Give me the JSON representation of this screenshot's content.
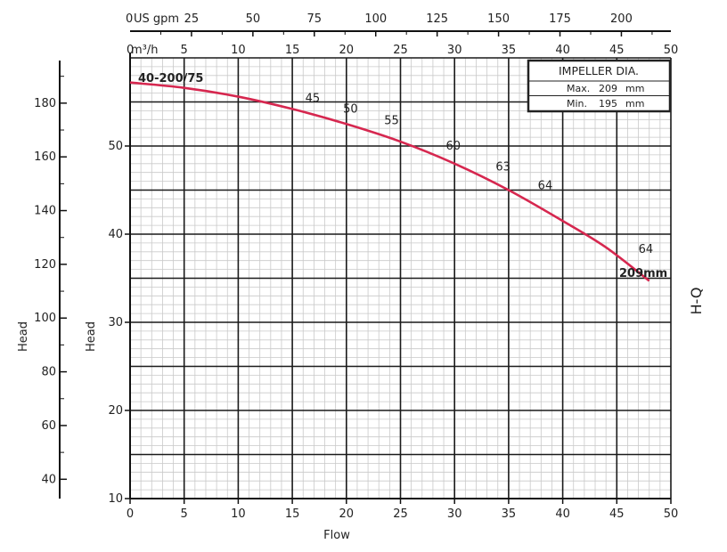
{
  "chart_data": {
    "type": "line",
    "title": "",
    "model_label": "40-200/75",
    "side_label": "H-Q",
    "xlabel": "Flow",
    "x_units_label": "m³/h",
    "x_top_units_label": "US gpm",
    "x_top_zero": "0",
    "ylabel_left": "Head",
    "ylabel_inner": "Head",
    "xlim": [
      0,
      50
    ],
    "ylim": [
      10,
      60
    ],
    "x_ticks": [
      "0",
      "5",
      "10",
      "15",
      "20",
      "25",
      "30",
      "35",
      "40",
      "45",
      "50"
    ],
    "x_top_ticks": [
      "25",
      "50",
      "75",
      "100",
      "125",
      "150",
      "175",
      "200"
    ],
    "y_inner_ticks": [
      "10",
      "20",
      "30",
      "40",
      "50"
    ],
    "y_outer_ticks": [
      "40",
      "60",
      "80",
      "100",
      "120",
      "140",
      "160",
      "180"
    ],
    "grid": true,
    "series": [
      {
        "name": "209mm",
        "color": "#d6274f",
        "x": [
          0,
          5,
          10,
          15,
          20,
          25,
          30,
          35,
          40,
          44,
          48
        ],
        "y": [
          57.2,
          56.6,
          55.6,
          54.2,
          52.5,
          50.5,
          48.0,
          45.0,
          41.5,
          38.5,
          34.7
        ]
      }
    ],
    "efficiency_labels": [
      {
        "text": "45",
        "x": 16.2,
        "y": 55.0
      },
      {
        "text": "50",
        "x": 19.7,
        "y": 53.8
      },
      {
        "text": "55",
        "x": 23.5,
        "y": 52.5
      },
      {
        "text": "60",
        "x": 29.2,
        "y": 49.6
      },
      {
        "text": "63",
        "x": 33.8,
        "y": 47.2
      },
      {
        "text": "64",
        "x": 37.7,
        "y": 45.1
      },
      {
        "text": "64",
        "x": 47.0,
        "y": 37.9
      }
    ],
    "impeller_box": {
      "title": "IMPELLER DIA.",
      "max_label": "Max.",
      "max_value": "209",
      "min_label": "Min.",
      "min_value": "195",
      "unit": "mm"
    },
    "curve_end_label": "209mm"
  }
}
